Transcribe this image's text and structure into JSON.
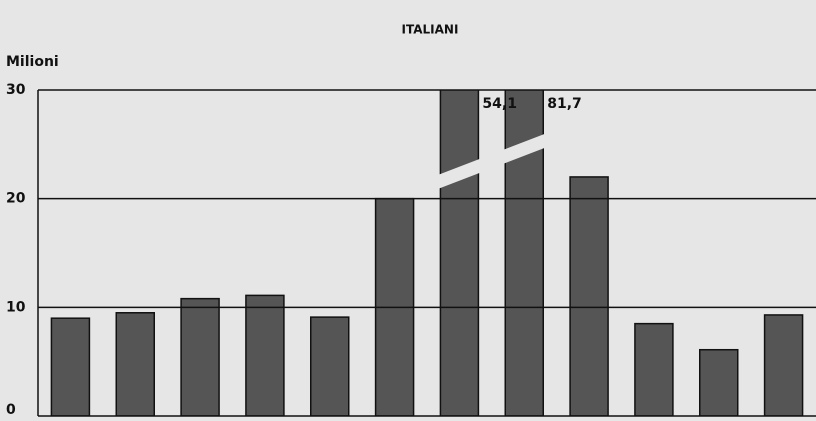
{
  "chart_data": {
    "type": "bar",
    "title": "ITALIANI",
    "y_label": "Milioni",
    "categories": [
      null,
      null,
      null,
      null,
      null,
      null,
      null,
      null,
      null,
      null,
      null,
      null
    ],
    "values": [
      9,
      9.5,
      10.8,
      11.1,
      9.1,
      20,
      54.1,
      81.7,
      22,
      8.5,
      6.1,
      9.3
    ],
    "value_labels": [
      null,
      null,
      null,
      null,
      null,
      null,
      "54,1",
      "81,7",
      null,
      null,
      null,
      null
    ],
    "color": "#555555",
    "ylim": [
      0,
      30
    ],
    "yticks": [
      0,
      10,
      20,
      30
    ],
    "grid": true
  }
}
